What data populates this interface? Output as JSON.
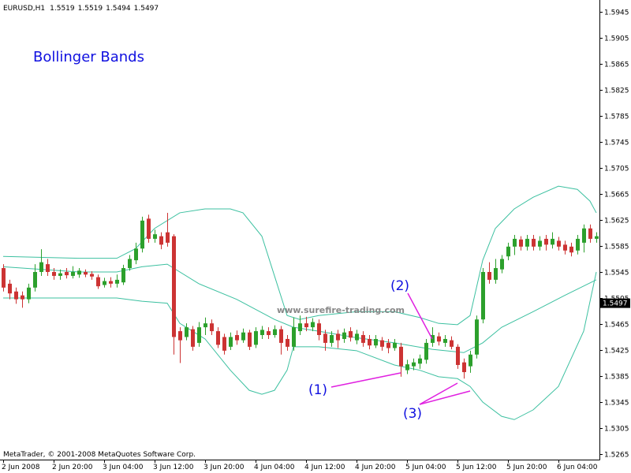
{
  "chart_data": {
    "type": "candlestick",
    "header": {
      "symbol": "EURUSD,H1",
      "open": 1.5519,
      "high": 1.5519,
      "low": 1.5494,
      "close": 1.5497
    },
    "title": "Bollinger Bands",
    "watermark": "www.surefire-trading.com",
    "footer": "MetaTrader, © 2001-2008 MetaQuotes Software Corp.",
    "annotations": [
      "(1)",
      "(2)",
      "(3)"
    ],
    "up_color": "#2ca02c",
    "down_color": "#cc3333",
    "open": [
      1.5551,
      1.5527,
      1.5515,
      1.5509,
      1.5503,
      1.5521,
      1.5545,
      1.5557,
      1.5545,
      1.5539,
      1.5545,
      1.5539,
      1.5541,
      1.5545,
      1.5542,
      1.5537,
      1.5525,
      1.5531,
      1.5527,
      1.5529,
      1.5551,
      1.5563,
      1.5581,
      1.5627,
      1.5596,
      1.56,
      1.5606,
      1.56,
      1.5454,
      1.5445,
      1.5457,
      1.5436,
      1.546,
      1.5466,
      1.5454,
      1.5445,
      1.543,
      1.5448,
      1.544,
      1.5452,
      1.5433,
      1.5448,
      1.5454,
      1.5448,
      1.5457,
      1.5442,
      1.543,
      1.5454,
      1.5466,
      1.546,
      1.5466,
      1.545,
      1.5436,
      1.545,
      1.5442,
      1.5454,
      1.544,
      1.5448,
      1.5442,
      1.5432,
      1.544,
      1.5436,
      1.5428,
      1.543,
      1.5394,
      1.54,
      1.5404,
      1.541,
      1.5436,
      1.5446,
      1.5436,
      1.544,
      1.543,
      1.5406,
      1.54,
      1.5418,
      1.5472,
      1.5545,
      1.5533,
      1.5549,
      1.5569,
      1.5584,
      1.5595,
      1.5584,
      1.5596,
      1.5584,
      1.5596,
      1.5587,
      1.5593,
      1.5587,
      1.5584,
      1.5578,
      1.559,
      1.5612,
      1.5596
    ],
    "high": [
      1.5557,
      1.5533,
      1.5521,
      1.5515,
      1.5527,
      1.5557,
      1.558,
      1.5565,
      1.5551,
      1.5549,
      1.5551,
      1.5554,
      1.5551,
      1.5549,
      1.5546,
      1.5541,
      1.5536,
      1.5537,
      1.5541,
      1.5556,
      1.5571,
      1.559,
      1.563,
      1.5633,
      1.561,
      1.5606,
      1.5636,
      1.5603,
      1.546,
      1.5466,
      1.5462,
      1.5468,
      1.5475,
      1.5472,
      1.546,
      1.545,
      1.5452,
      1.5455,
      1.5458,
      1.5456,
      1.546,
      1.5462,
      1.546,
      1.5463,
      1.5462,
      1.5448,
      1.5475,
      1.5478,
      1.5476,
      1.5474,
      1.5472,
      1.5456,
      1.5454,
      1.5456,
      1.5458,
      1.546,
      1.5456,
      1.5454,
      1.5448,
      1.5448,
      1.5445,
      1.5442,
      1.5442,
      1.5436,
      1.541,
      1.5412,
      1.5418,
      1.5442,
      1.546,
      1.5452,
      1.5448,
      1.5446,
      1.5434,
      1.5412,
      1.5424,
      1.5478,
      1.5551,
      1.556,
      1.5565,
      1.5571,
      1.559,
      1.5602,
      1.56,
      1.5602,
      1.5602,
      1.56,
      1.5602,
      1.5606,
      1.5599,
      1.5593,
      1.559,
      1.5602,
      1.5618,
      1.5618,
      1.5606
    ],
    "low": [
      1.5515,
      1.5503,
      1.5496,
      1.549,
      1.5497,
      1.5515,
      1.5539,
      1.5539,
      1.5533,
      1.5533,
      1.5535,
      1.5535,
      1.5536,
      1.5537,
      1.5533,
      1.5519,
      1.5521,
      1.5521,
      1.5521,
      1.5525,
      1.5547,
      1.5557,
      1.5575,
      1.559,
      1.559,
      1.558,
      1.5584,
      1.5418,
      1.5405,
      1.544,
      1.5424,
      1.543,
      1.5448,
      1.5448,
      1.5428,
      1.5418,
      1.5425,
      1.5433,
      1.5436,
      1.5425,
      1.5428,
      1.5442,
      1.5442,
      1.5444,
      1.5418,
      1.5424,
      1.5424,
      1.5448,
      1.5454,
      1.5454,
      1.544,
      1.5424,
      1.543,
      1.5428,
      1.5436,
      1.5438,
      1.5434,
      1.543,
      1.5426,
      1.5428,
      1.5424,
      1.542,
      1.5424,
      1.5384,
      1.5388,
      1.5394,
      1.5396,
      1.5404,
      1.543,
      1.5432,
      1.543,
      1.5426,
      1.5396,
      1.5381,
      1.539,
      1.5412,
      1.5466,
      1.5527,
      1.5527,
      1.5543,
      1.5563,
      1.5571,
      1.5578,
      1.5578,
      1.5578,
      1.5578,
      1.5578,
      1.5581,
      1.5578,
      1.5572,
      1.5569,
      1.5572,
      1.5575,
      1.559,
      1.559
    ],
    "close": [
      1.5521,
      1.5512,
      1.5503,
      1.5503,
      1.5521,
      1.5545,
      1.556,
      1.5545,
      1.5539,
      1.5543,
      1.554,
      1.5545,
      1.5547,
      1.5541,
      1.5538,
      1.5523,
      1.5531,
      1.5527,
      1.5533,
      1.5551,
      1.5565,
      1.5581,
      1.5624,
      1.5596,
      1.5603,
      1.5587,
      1.559,
      1.5445,
      1.544,
      1.546,
      1.543,
      1.546,
      1.5466,
      1.5454,
      1.5433,
      1.5424,
      1.5445,
      1.544,
      1.5452,
      1.543,
      1.5454,
      1.5456,
      1.5448,
      1.5457,
      1.5436,
      1.543,
      1.546,
      1.5466,
      1.546,
      1.5468,
      1.5448,
      1.5436,
      1.5448,
      1.544,
      1.5452,
      1.5444,
      1.545,
      1.5436,
      1.5432,
      1.5442,
      1.543,
      1.5428,
      1.5436,
      1.54,
      1.5403,
      1.5406,
      1.5412,
      1.5436,
      1.5448,
      1.5438,
      1.5442,
      1.543,
      1.5402,
      1.5391,
      1.5418,
      1.5472,
      1.5545,
      1.5533,
      1.5551,
      1.5565,
      1.5584,
      1.5596,
      1.5584,
      1.5596,
      1.5584,
      1.5593,
      1.5587,
      1.5596,
      1.5584,
      1.5578,
      1.5575,
      1.5596,
      1.5612,
      1.5596,
      1.56
    ],
    "bands": [
      {
        "color": "#3cc0a0",
        "x": [
          0,
          12,
          18,
          21,
          24,
          28,
          32,
          36,
          38,
          41,
          43,
          45,
          47,
          50,
          56,
          62,
          66,
          69,
          72,
          74,
          76,
          78,
          81,
          84,
          88,
          91,
          93,
          94
        ],
        "values": [
          1.5569,
          1.5566,
          1.5566,
          1.5581,
          1.5612,
          1.5636,
          1.5642,
          1.5642,
          1.5636,
          1.56,
          1.5539,
          1.5478,
          1.5472,
          1.5478,
          1.5484,
          1.5484,
          1.5475,
          1.5466,
          1.5464,
          1.5478,
          1.5563,
          1.5612,
          1.5642,
          1.566,
          1.5677,
          1.5672,
          1.5654,
          1.5636
        ]
      },
      {
        "color": "#3cc0a0",
        "x": [
          0,
          12,
          18,
          22,
          26,
          31,
          37,
          43,
          46,
          50,
          56,
          62,
          68,
          73,
          76,
          79,
          84,
          89,
          94
        ],
        "values": [
          1.5553,
          1.5545,
          1.5545,
          1.5553,
          1.5557,
          1.5527,
          1.5503,
          1.5472,
          1.546,
          1.5454,
          1.5444,
          1.5436,
          1.5426,
          1.5421,
          1.5436,
          1.546,
          1.5484,
          1.5509,
          1.5533
        ]
      },
      {
        "color": "#3cc0a0",
        "x": [
          0,
          18,
          22,
          26,
          28,
          32,
          36,
          39,
          41,
          43,
          45,
          46,
          50,
          56,
          62,
          66,
          69,
          72,
          74,
          76,
          79,
          81,
          84,
          88,
          92,
          94
        ],
        "values": [
          1.5505,
          1.5505,
          1.55,
          1.5497,
          1.5466,
          1.5442,
          1.5394,
          1.5363,
          1.5357,
          1.5363,
          1.5394,
          1.543,
          1.543,
          1.5424,
          1.5402,
          1.5394,
          1.5384,
          1.5381,
          1.5369,
          1.5345,
          1.5323,
          1.5318,
          1.5333,
          1.5369,
          1.5454,
          1.5545
        ]
      }
    ],
    "ylim": [
      1.52565,
      1.59608
    ],
    "yticks": [
      1.5945,
      1.5905,
      1.5865,
      1.5825,
      1.5785,
      1.5745,
      1.5705,
      1.5665,
      1.5625,
      1.5585,
      1.5545,
      1.5505,
      1.5465,
      1.5425,
      1.5385,
      1.5345,
      1.5305,
      1.5265
    ],
    "current_price": 1.5497,
    "xticks": [
      {
        "value": 0,
        "label": "2 Jun 2008"
      },
      {
        "value": 8,
        "label": "2 Jun 20:00"
      },
      {
        "value": 16,
        "label": "3 Jun 04:00"
      },
      {
        "value": 24,
        "label": "3 Jun 12:00"
      },
      {
        "value": 32,
        "label": "3 Jun 20:00"
      },
      {
        "value": 40,
        "label": "4 Jun 04:00"
      },
      {
        "value": 48,
        "label": "4 Jun 12:00"
      },
      {
        "value": 56,
        "label": "4 Jun 20:00"
      },
      {
        "value": 64,
        "label": "5 Jun 04:00"
      },
      {
        "value": 72,
        "label": "5 Jun 12:00"
      },
      {
        "value": 80,
        "label": "5 Jun 20:00"
      },
      {
        "value": 88,
        "label": "6 Jun 04:00"
      }
    ]
  }
}
